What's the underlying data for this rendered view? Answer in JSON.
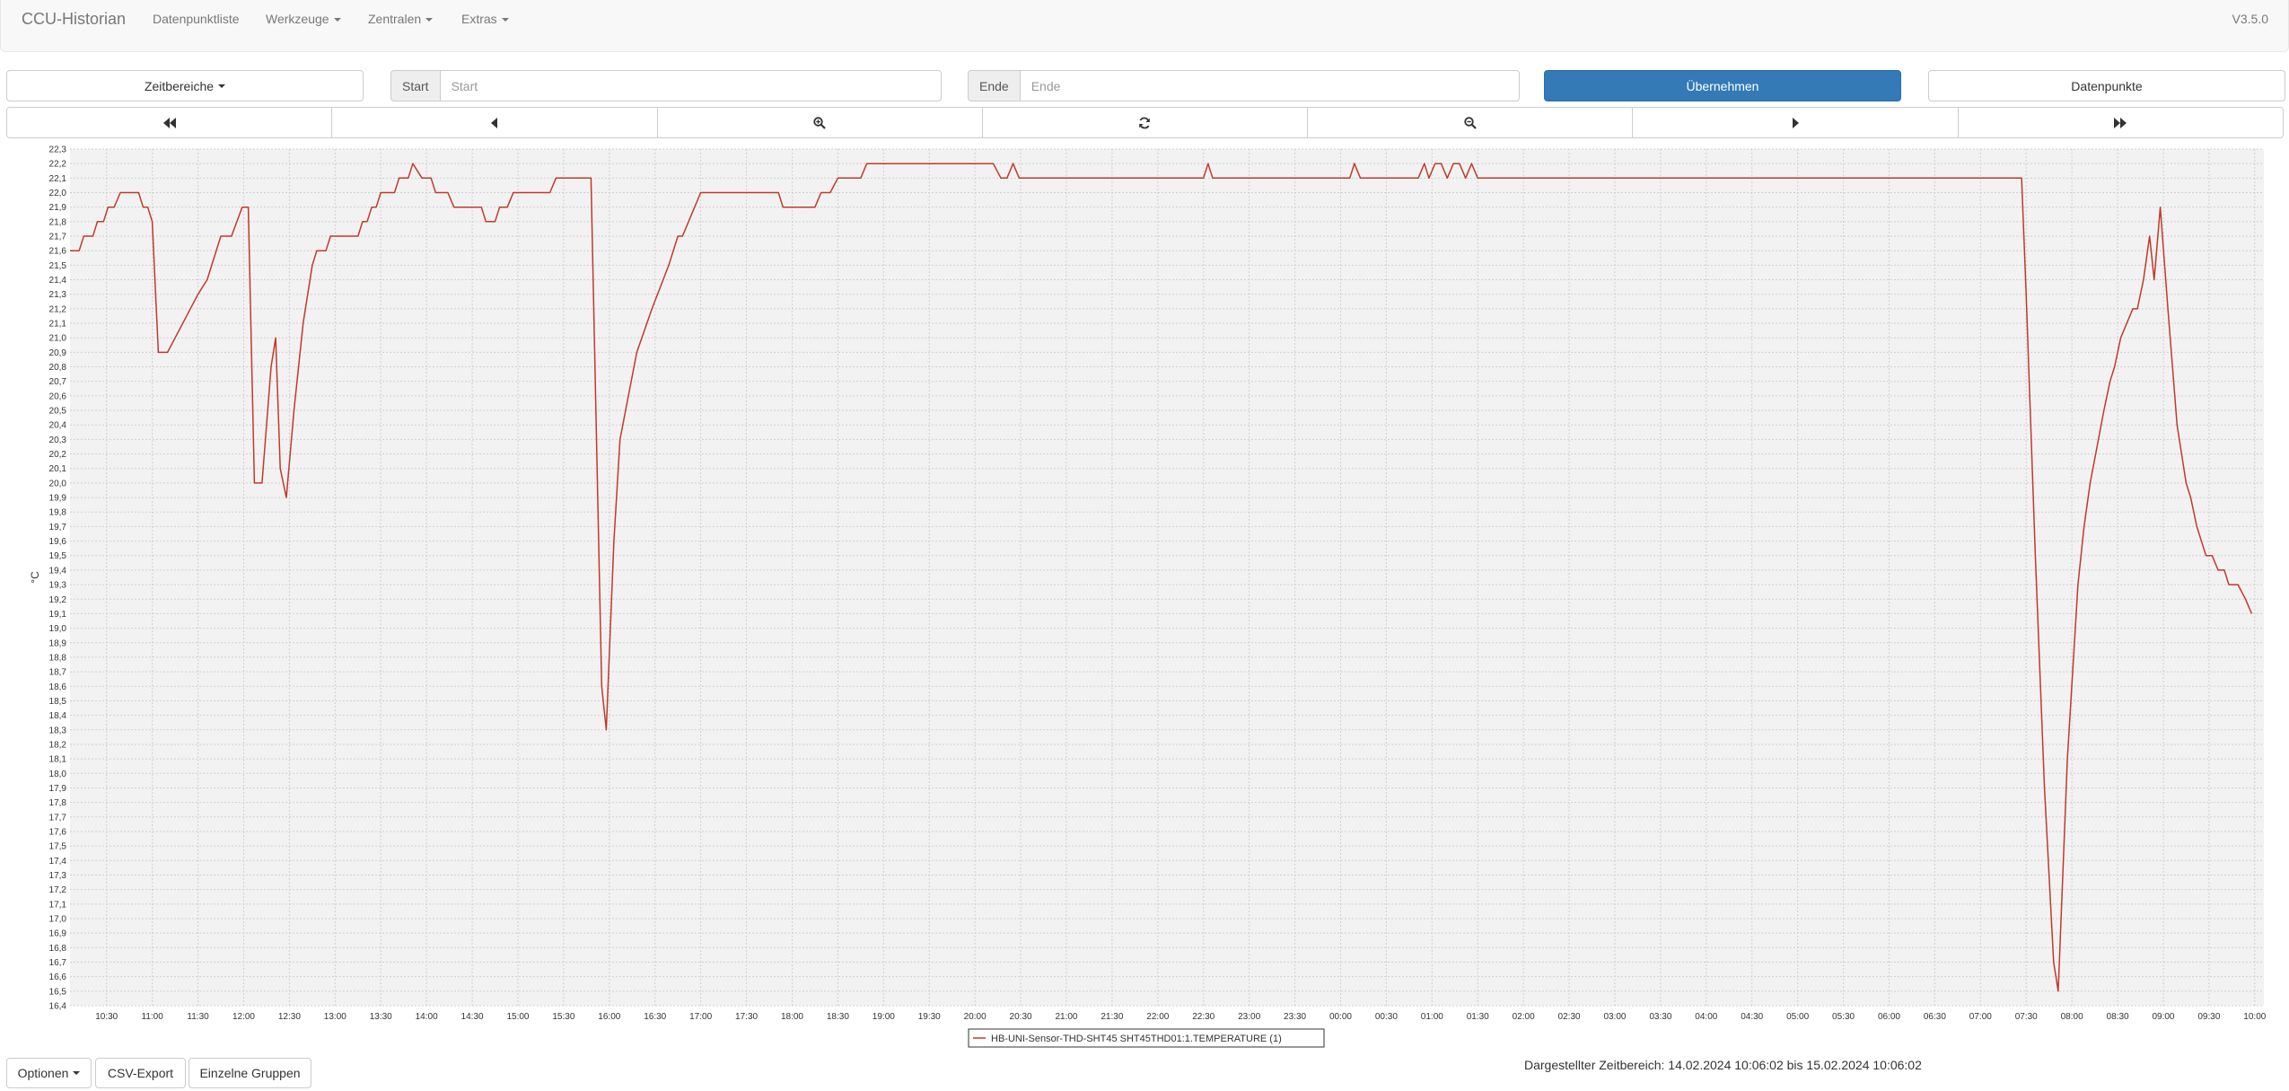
{
  "navbar": {
    "brand": "CCU-Historian",
    "items": [
      {
        "label": "Datenpunktliste",
        "dropdown": false
      },
      {
        "label": "Werkzeuge",
        "dropdown": true
      },
      {
        "label": "Zentralen",
        "dropdown": true
      },
      {
        "label": "Extras",
        "dropdown": true
      }
    ],
    "version": "V3.5.0"
  },
  "controls": {
    "time_ranges_label": "Zeitbereiche",
    "start_label": "Start",
    "start_placeholder": "Start",
    "end_label": "Ende",
    "end_placeholder": "Ende",
    "apply_label": "Übernehmen",
    "datapoints_label": "Datenpunkte"
  },
  "nav_buttons": [
    {
      "icon": "fast-backward-icon"
    },
    {
      "icon": "step-backward-icon"
    },
    {
      "icon": "zoom-in-icon"
    },
    {
      "icon": "refresh-icon"
    },
    {
      "icon": "zoom-out-icon"
    },
    {
      "icon": "step-forward-icon"
    },
    {
      "icon": "fast-forward-icon"
    }
  ],
  "footer": {
    "options_label": "Optionen",
    "csv_label": "CSV-Export",
    "groups_label": "Einzelne Gruppen",
    "range_text": "Dargestellter Zeitbereich: 14.02.2024 10:06:02 bis 15.02.2024 10:06:02"
  },
  "colors": {
    "series": "#c0392b",
    "primary": "#337ab7",
    "plot_bg": "#f2f2f2"
  },
  "chart_data": {
    "type": "line",
    "ylabel": "°C",
    "ylim": [
      16.4,
      22.3
    ],
    "y_tick_step": 0.1,
    "xlim": [
      "10:06",
      "34:06"
    ],
    "x_ticks": [
      "10:30",
      "11:00",
      "11:30",
      "12:00",
      "12:30",
      "13:00",
      "13:30",
      "14:00",
      "14:30",
      "15:00",
      "15:30",
      "16:00",
      "16:30",
      "17:00",
      "17:30",
      "18:00",
      "18:30",
      "19:00",
      "19:30",
      "20:00",
      "20:30",
      "21:00",
      "21:30",
      "22:00",
      "22:30",
      "23:00",
      "23:30",
      "00:00",
      "00:30",
      "01:00",
      "01:30",
      "02:00",
      "02:30",
      "03:00",
      "03:30",
      "04:00",
      "04:30",
      "05:00",
      "05:30",
      "06:00",
      "06:30",
      "07:00",
      "07:30",
      "08:00",
      "08:30",
      "09:00",
      "09:30",
      "10:00"
    ],
    "grid": true,
    "legend_position": "bottom-center",
    "series": [
      {
        "name": "HB-UNI-Sensor-THD-SHT45 SHT45THD01:1.TEMPERATURE (1)",
        "points": [
          [
            "10:06",
            21.6
          ],
          [
            "10:12",
            21.6
          ],
          [
            "10:15",
            21.7
          ],
          [
            "10:21",
            21.7
          ],
          [
            "10:24",
            21.8
          ],
          [
            "10:28",
            21.8
          ],
          [
            "10:31",
            21.9
          ],
          [
            "10:35",
            21.9
          ],
          [
            "10:39",
            22.0
          ],
          [
            "10:51",
            22.0
          ],
          [
            "10:54",
            21.9
          ],
          [
            "10:57",
            21.9
          ],
          [
            "11:00",
            21.8
          ],
          [
            "11:04",
            20.9
          ],
          [
            "11:10",
            20.9
          ],
          [
            "11:30",
            21.3
          ],
          [
            "11:36",
            21.4
          ],
          [
            "11:45",
            21.7
          ],
          [
            "11:52",
            21.7
          ],
          [
            "11:59",
            21.9
          ],
          [
            "12:03",
            21.9
          ],
          [
            "12:07",
            20.0
          ],
          [
            "12:12",
            20.0
          ],
          [
            "12:18",
            20.8
          ],
          [
            "12:21",
            21.0
          ],
          [
            "12:24",
            20.1
          ],
          [
            "12:28",
            19.9
          ],
          [
            "12:33",
            20.5
          ],
          [
            "12:39",
            21.1
          ],
          [
            "12:45",
            21.5
          ],
          [
            "12:48",
            21.6
          ],
          [
            "12:54",
            21.6
          ],
          [
            "12:57",
            21.7
          ],
          [
            "13:15",
            21.7
          ],
          [
            "13:18",
            21.8
          ],
          [
            "13:21",
            21.8
          ],
          [
            "13:24",
            21.9
          ],
          [
            "13:27",
            21.9
          ],
          [
            "13:30",
            22.0
          ],
          [
            "13:39",
            22.0
          ],
          [
            "13:42",
            22.1
          ],
          [
            "13:48",
            22.1
          ],
          [
            "13:51",
            22.2
          ],
          [
            "13:57",
            22.1
          ],
          [
            "14:03",
            22.1
          ],
          [
            "14:06",
            22.0
          ],
          [
            "14:14",
            22.0
          ],
          [
            "14:18",
            21.9
          ],
          [
            "14:36",
            21.9
          ],
          [
            "14:39",
            21.8
          ],
          [
            "14:45",
            21.8
          ],
          [
            "14:48",
            21.9
          ],
          [
            "14:53",
            21.9
          ],
          [
            "14:57",
            22.0
          ],
          [
            "15:21",
            22.0
          ],
          [
            "15:25",
            22.1
          ],
          [
            "15:48",
            22.1
          ],
          [
            "15:55",
            18.6
          ],
          [
            "15:58",
            18.3
          ],
          [
            "16:03",
            19.6
          ],
          [
            "16:07",
            20.3
          ],
          [
            "16:18",
            20.9
          ],
          [
            "16:28",
            21.2
          ],
          [
            "16:39",
            21.5
          ],
          [
            "16:45",
            21.7
          ],
          [
            "16:48",
            21.7
          ],
          [
            "17:00",
            22.0
          ],
          [
            "17:51",
            22.0
          ],
          [
            "17:54",
            21.9
          ],
          [
            "18:15",
            21.9
          ],
          [
            "18:19",
            22.0
          ],
          [
            "18:25",
            22.0
          ],
          [
            "18:30",
            22.1
          ],
          [
            "18:45",
            22.1
          ],
          [
            "18:49",
            22.2
          ],
          [
            "20:12",
            22.2
          ],
          [
            "20:17",
            22.1
          ],
          [
            "20:21",
            22.1
          ],
          [
            "20:25",
            22.2
          ],
          [
            "20:29",
            22.1
          ],
          [
            "22:30",
            22.1
          ],
          [
            "22:33",
            22.2
          ],
          [
            "22:36",
            22.1
          ],
          [
            "24:06",
            22.1
          ],
          [
            "24:09",
            22.2
          ],
          [
            "24:13",
            22.1
          ],
          [
            "24:51",
            22.1
          ],
          [
            "24:55",
            22.2
          ],
          [
            "24:58",
            22.1
          ],
          [
            "25:02",
            22.2
          ],
          [
            "25:06",
            22.2
          ],
          [
            "25:10",
            22.1
          ],
          [
            "25:14",
            22.2
          ],
          [
            "25:18",
            22.2
          ],
          [
            "25:22",
            22.1
          ],
          [
            "25:26",
            22.2
          ],
          [
            "25:30",
            22.1
          ],
          [
            "31:27",
            22.1
          ],
          [
            "31:30",
            21.3
          ],
          [
            "31:36",
            19.5
          ],
          [
            "31:42",
            17.9
          ],
          [
            "31:48",
            16.7
          ],
          [
            "31:51",
            16.5
          ],
          [
            "31:57",
            18.1
          ],
          [
            "32:04",
            19.3
          ],
          [
            "32:08",
            19.7
          ],
          [
            "32:12",
            20.0
          ],
          [
            "32:21",
            20.5
          ],
          [
            "32:25",
            20.7
          ],
          [
            "32:28",
            20.8
          ],
          [
            "32:32",
            21.0
          ],
          [
            "32:36",
            21.1
          ],
          [
            "32:40",
            21.2
          ],
          [
            "32:43",
            21.2
          ],
          [
            "32:47",
            21.4
          ],
          [
            "32:51",
            21.7
          ],
          [
            "32:54",
            21.4
          ],
          [
            "32:58",
            21.9
          ],
          [
            "33:03",
            21.2
          ],
          [
            "33:06",
            20.8
          ],
          [
            "33:09",
            20.4
          ],
          [
            "33:15",
            20.0
          ],
          [
            "33:18",
            19.9
          ],
          [
            "33:22",
            19.7
          ],
          [
            "33:28",
            19.5
          ],
          [
            "33:32",
            19.5
          ],
          [
            "33:36",
            19.4
          ],
          [
            "33:40",
            19.4
          ],
          [
            "33:43",
            19.3
          ],
          [
            "33:49",
            19.3
          ],
          [
            "33:54",
            19.2
          ],
          [
            "33:58",
            19.1
          ]
        ]
      }
    ]
  }
}
